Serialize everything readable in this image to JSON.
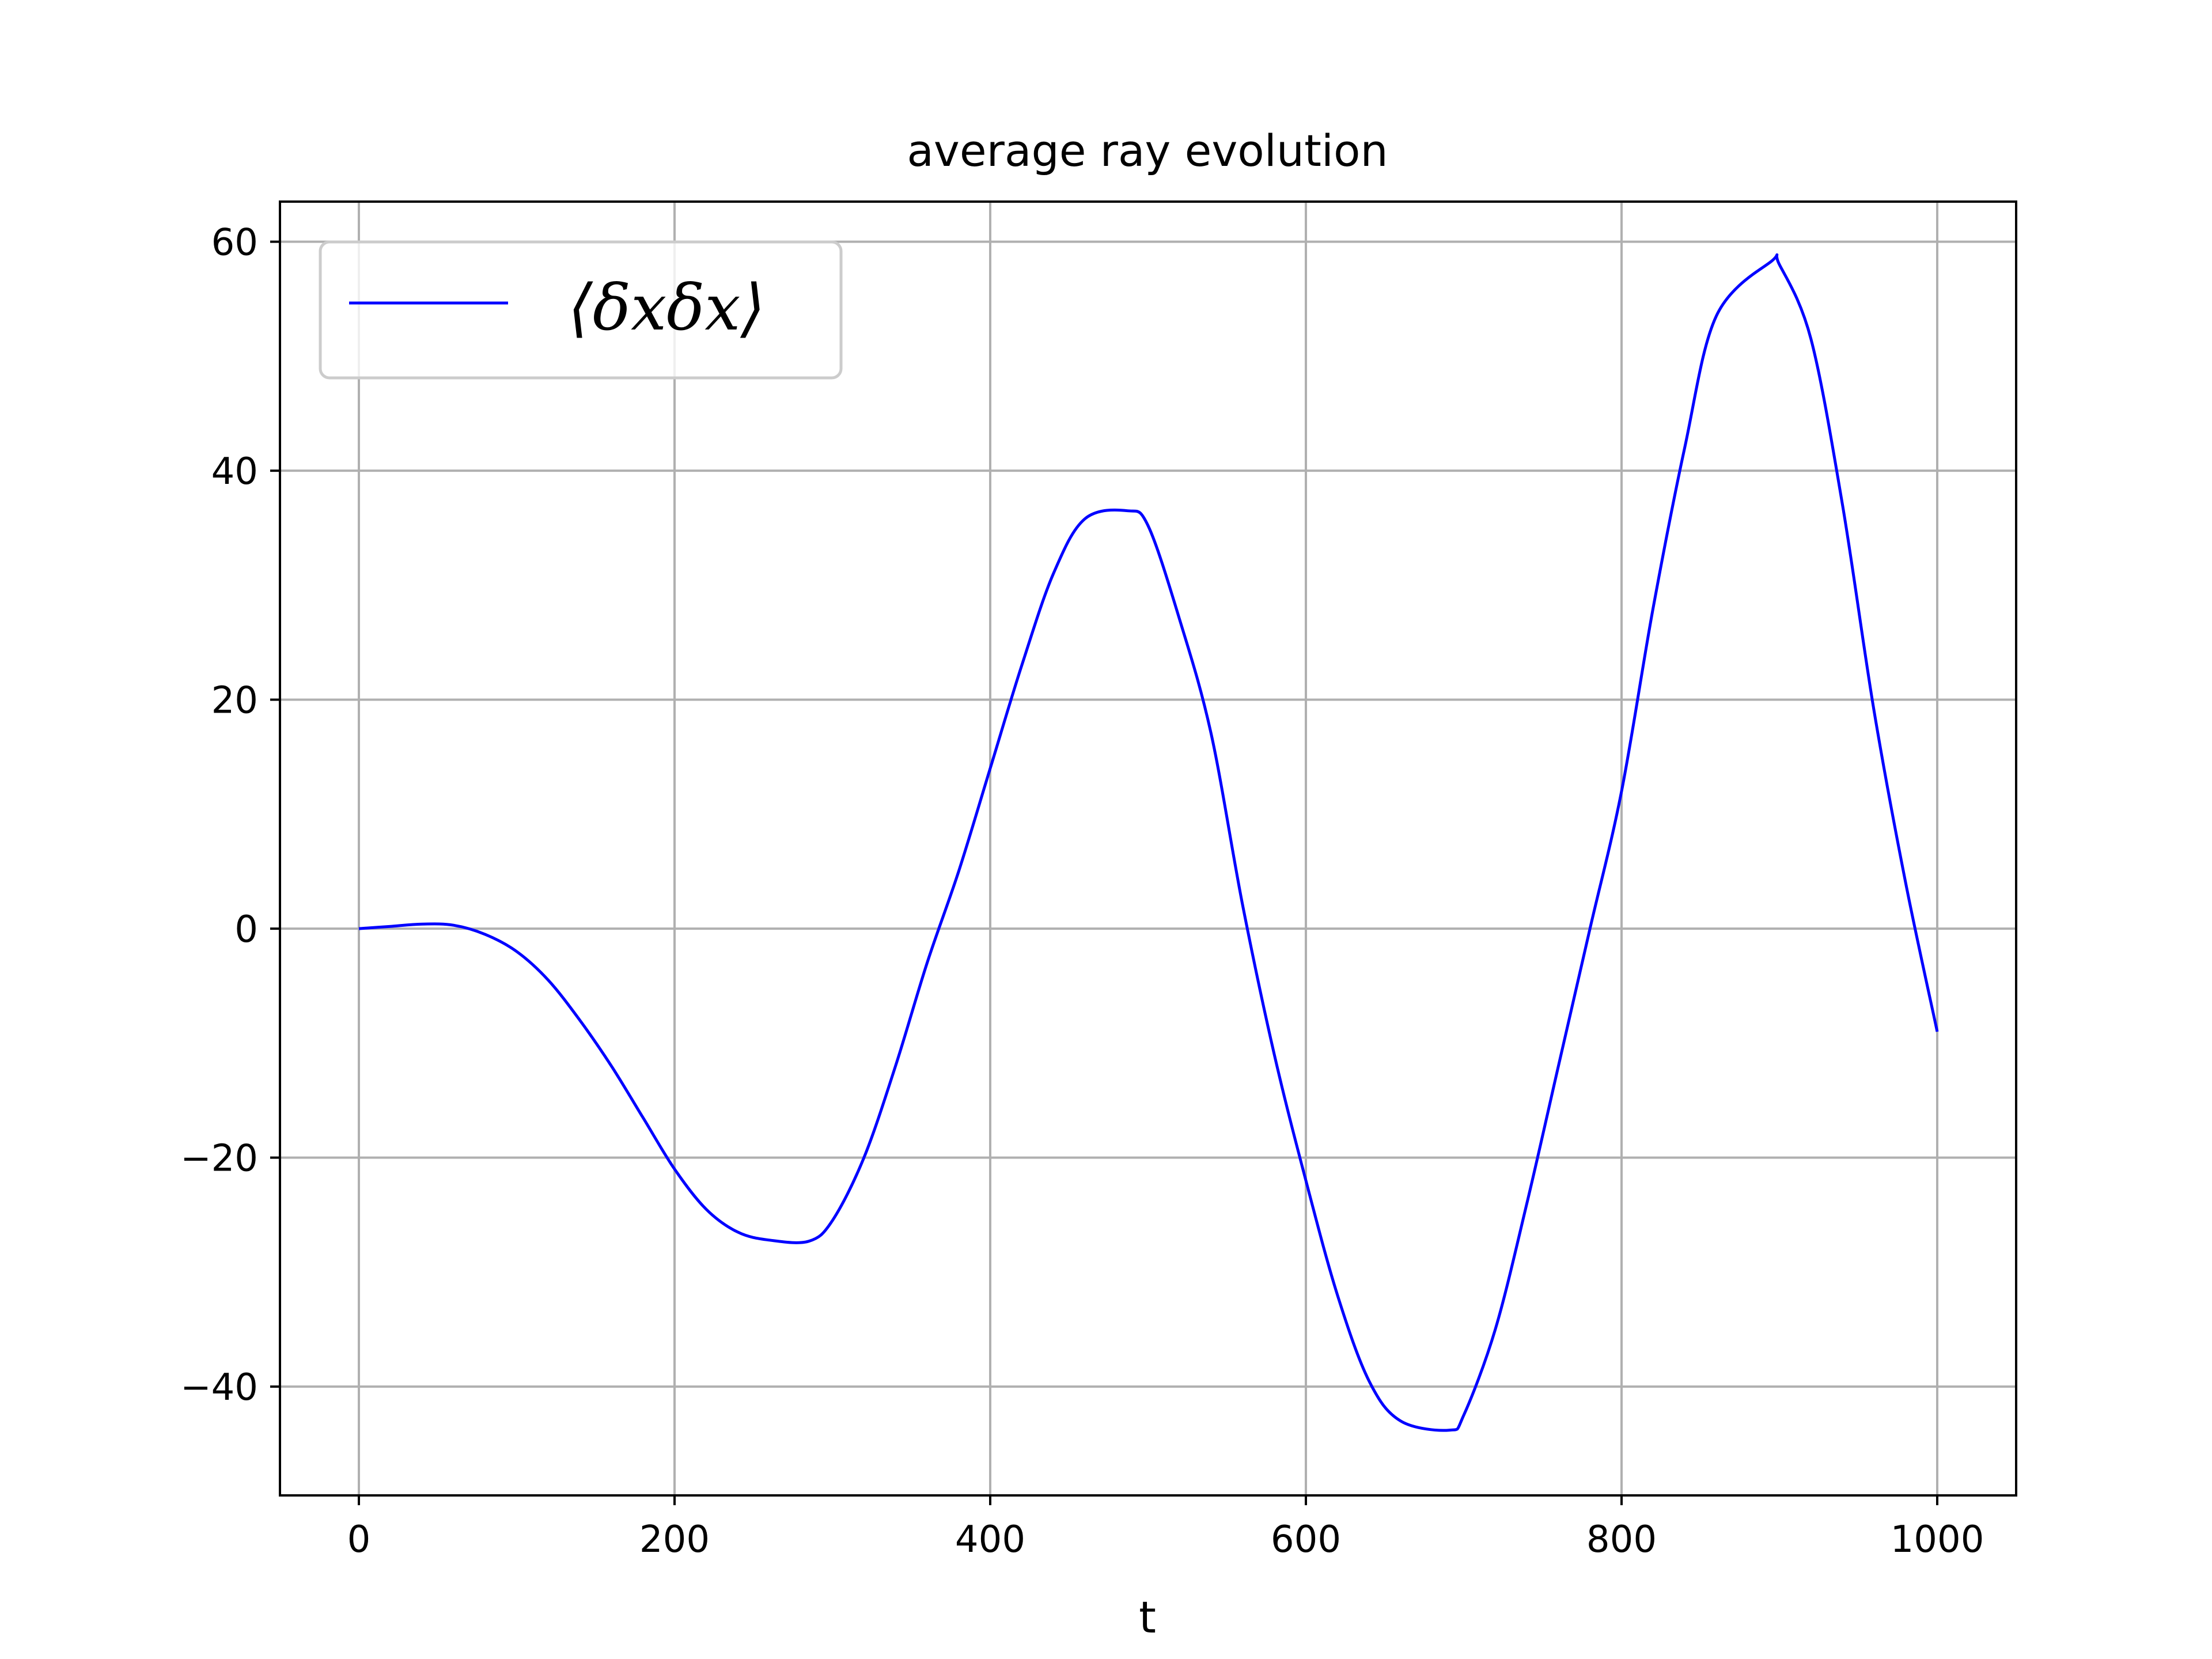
{
  "chart_data": {
    "type": "line",
    "title": "average ray evolution",
    "xlabel": "t",
    "ylabel": "",
    "xlim": [
      -50,
      1050
    ],
    "ylim": [
      -49.5,
      63.5
    ],
    "xticks": [
      0,
      200,
      400,
      600,
      800,
      1000
    ],
    "xtick_labels": [
      "0",
      "200",
      "400",
      "600",
      "800",
      "1000"
    ],
    "yticks": [
      -40,
      -20,
      0,
      20,
      40,
      60
    ],
    "ytick_labels": [
      "−40",
      "−20",
      "0",
      "20",
      "40",
      "60"
    ],
    "grid": true,
    "legend_placement": "top-left",
    "series": [
      {
        "name": "⟨δxδx⟩",
        "color": "#0000ff",
        "x": [
          0,
          20,
          40,
          60,
          80,
          100,
          120,
          140,
          160,
          180,
          200,
          220,
          240,
          260,
          285,
          300,
          320,
          340,
          360,
          380,
          400,
          420,
          440,
          460,
          487,
          500,
          520,
          540,
          560,
          580,
          600,
          620,
          640,
          660,
          691,
          700,
          720,
          740,
          760,
          780,
          800,
          820,
          840,
          860,
          895,
          900,
          920,
          940,
          960,
          980,
          1000
        ],
        "y": [
          0,
          0.2,
          0.4,
          0.3,
          -0.5,
          -2,
          -4.5,
          -8,
          -12,
          -16.5,
          -21,
          -24.5,
          -26.5,
          -27.2,
          -27.3,
          -25.5,
          -20,
          -12,
          -3,
          5,
          14,
          23,
          31,
          35.8,
          36.5,
          35.2,
          27,
          17,
          2,
          -11,
          -22,
          -32,
          -39.5,
          -43,
          -43.8,
          -42.5,
          -35,
          -24,
          -12,
          0,
          12,
          28,
          42,
          53.5,
          58.3,
          58,
          51.5,
          37,
          19,
          4,
          -9
        ]
      }
    ]
  }
}
